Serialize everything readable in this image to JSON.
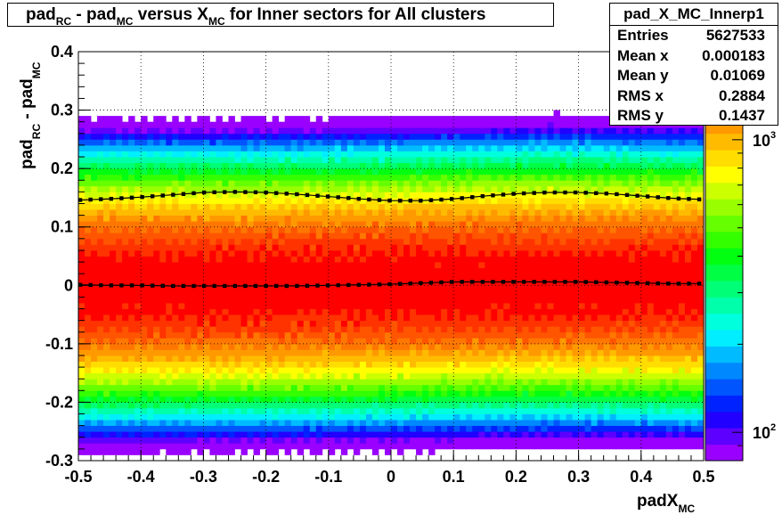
{
  "title": {
    "parts": [
      {
        "text": "pad"
      },
      {
        "sub": "RC"
      },
      {
        "text": " - pad"
      },
      {
        "sub": "MC"
      },
      {
        "text": " versus X"
      },
      {
        "sub": "MC"
      },
      {
        "text": " for Inner sectors for All clusters"
      }
    ]
  },
  "stats": {
    "name": "pad_X_MC_Innerp1",
    "rows": [
      {
        "key": "Entries",
        "value": "5627533"
      },
      {
        "key": "Mean x",
        "value": "0.000183"
      },
      {
        "key": "Mean y",
        "value": "0.01069"
      },
      {
        "key": "RMS x",
        "value": "0.2884"
      },
      {
        "key": "RMS y",
        "value": "0.1437"
      }
    ]
  },
  "chart_data": {
    "type": "heatmap",
    "xlabel": {
      "main": "padX",
      "sub": "MC"
    },
    "ylabel": {
      "main1": "pad",
      "sub1": "RC",
      "main2": " - pad",
      "sub2": "MC"
    },
    "xlim": [
      -0.5,
      0.5
    ],
    "ylim": [
      -0.3,
      0.4
    ],
    "x_ticks": [
      "-0.5",
      "-0.4",
      "-0.3",
      "-0.2",
      "-0.1",
      "0",
      "0.1",
      "0.2",
      "0.3",
      "0.4",
      "0.5"
    ],
    "y_ticks": [
      "-0.3",
      "-0.2",
      "-0.1",
      "0",
      "0.1",
      "0.2",
      "0.3",
      "0.4"
    ],
    "grid": true,
    "z_scale": "log",
    "z_range": [
      80,
      2000
    ],
    "z_tick_labels": [
      {
        "base": "10",
        "exp": "2",
        "value": 100
      },
      {
        "base": "10",
        "exp": "3",
        "value": 1000
      }
    ],
    "palette": [
      "#9900ff",
      "#5e00ff",
      "#2200ff",
      "#0022ff",
      "#0055ff",
      "#0088ff",
      "#00bbff",
      "#00eeff",
      "#00ffdd",
      "#00ffaa",
      "#00ff77",
      "#00ff44",
      "#00ff11",
      "#33ff00",
      "#66ff00",
      "#99ff00",
      "#ccff00",
      "#ffff00",
      "#ffdd00",
      "#ffbb00",
      "#ff9900",
      "#ff7700",
      "#ff5500",
      "#ff3300",
      "#ff0000"
    ],
    "counts_model": {
      "peak": 2000,
      "sigma": 0.107,
      "center_x": [
        -0.5,
        -0.25,
        0.0,
        0.25,
        0.5
      ],
      "center_y": [
        0.0,
        0.0,
        0.002,
        0.006,
        0.003
      ]
    },
    "series": [
      {
        "name": "mean",
        "x": [
          -0.5,
          -0.45,
          -0.4,
          -0.35,
          -0.3,
          -0.25,
          -0.2,
          -0.15,
          -0.1,
          -0.05,
          0.0,
          0.05,
          0.1,
          0.15,
          0.2,
          0.25,
          0.3,
          0.35,
          0.4,
          0.45,
          0.5
        ],
        "y": [
          0.001,
          0.0,
          0.0,
          -0.001,
          -0.001,
          -0.001,
          -0.001,
          -0.001,
          0.0,
          0.001,
          0.002,
          0.004,
          0.006,
          0.006,
          0.006,
          0.006,
          0.006,
          0.005,
          0.004,
          0.003,
          0.003
        ]
      },
      {
        "name": "rms",
        "x": [
          -0.5,
          -0.45,
          -0.4,
          -0.35,
          -0.3,
          -0.25,
          -0.2,
          -0.15,
          -0.1,
          -0.05,
          0.0,
          0.05,
          0.1,
          0.15,
          0.2,
          0.25,
          0.3,
          0.35,
          0.4,
          0.45,
          0.5
        ],
        "y": [
          0.146,
          0.148,
          0.151,
          0.155,
          0.159,
          0.16,
          0.159,
          0.156,
          0.152,
          0.148,
          0.145,
          0.145,
          0.148,
          0.153,
          0.157,
          0.159,
          0.159,
          0.157,
          0.153,
          0.149,
          0.147
        ]
      }
    ]
  }
}
